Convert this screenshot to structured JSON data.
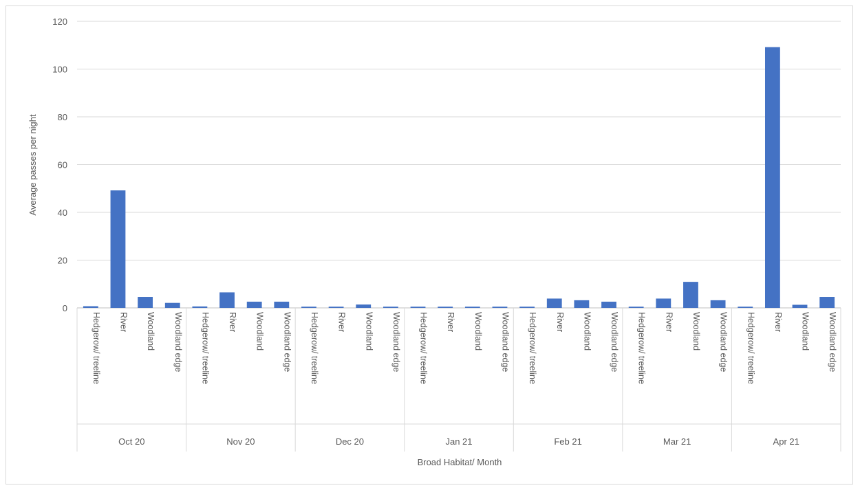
{
  "chart_data": {
    "type": "bar",
    "title": "",
    "xlabel": "Broad Habitat/ Month",
    "ylabel": "Average passes per night",
    "ylim": [
      0,
      120
    ],
    "yticks": [
      0,
      20,
      40,
      60,
      80,
      100,
      120
    ],
    "grid": true,
    "legend": "none",
    "bar_color": "#4472c4",
    "groups": [
      {
        "label": "Oct 20",
        "categories": [
          "Hedgerow/ treeline",
          "River",
          "Woodland",
          "Woodland edge"
        ],
        "values": [
          0.7,
          49.2,
          4.6,
          2.1
        ]
      },
      {
        "label": "Nov 20",
        "categories": [
          "Hedgerow/ treeline",
          "River",
          "Woodland",
          "Woodland edge"
        ],
        "values": [
          0.6,
          6.5,
          2.6,
          2.6
        ]
      },
      {
        "label": "Dec 20",
        "categories": [
          "Hedgerow/ treeline",
          "River",
          "Woodland",
          "Woodland edge"
        ],
        "values": [
          0.5,
          0.5,
          1.4,
          0.5
        ]
      },
      {
        "label": "Jan 21",
        "categories": [
          "Hedgerow/ treeline",
          "River",
          "Woodland",
          "Woodland edge"
        ],
        "values": [
          0.5,
          0.5,
          0.5,
          0.5
        ]
      },
      {
        "label": "Feb 21",
        "categories": [
          "Hedgerow/ treeline",
          "River",
          "Woodland",
          "Woodland edge"
        ],
        "values": [
          0.5,
          3.9,
          3.2,
          2.6
        ]
      },
      {
        "label": "Mar 21",
        "categories": [
          "Hedgerow/ treeline",
          "River",
          "Woodland",
          "Woodland edge"
        ],
        "values": [
          0.5,
          3.9,
          10.9,
          3.2
        ]
      },
      {
        "label": "Apr 21",
        "categories": [
          "Hedgerow/ treeline",
          "River",
          "Woodland",
          "Woodland edge"
        ],
        "values": [
          0.5,
          109.2,
          1.3,
          4.6
        ]
      }
    ]
  }
}
